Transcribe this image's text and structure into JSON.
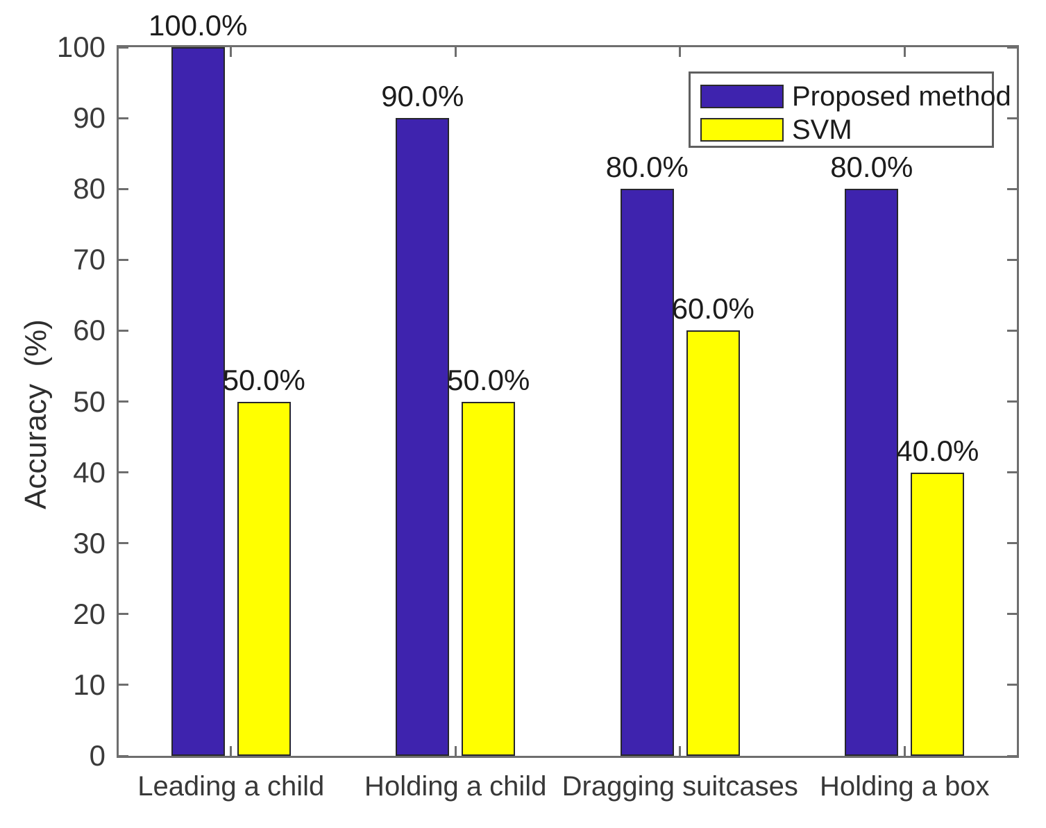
{
  "chart_data": {
    "type": "bar",
    "title": "",
    "xlabel": "",
    "ylabel": "Accuracy  (%)",
    "ylim": [
      0,
      100
    ],
    "yticks": [
      0,
      10,
      20,
      30,
      40,
      50,
      60,
      70,
      80,
      90,
      100
    ],
    "ytick_labels": [
      "0",
      "10",
      "20",
      "30",
      "40",
      "50",
      "60",
      "70",
      "80",
      "90",
      "100"
    ],
    "categories": [
      "Leading a child",
      "Holding a child",
      "Dragging suitcases",
      "Holding a box"
    ],
    "series": [
      {
        "name": "Proposed method",
        "color": "#3E23AE",
        "values": [
          100,
          90,
          80,
          80
        ],
        "value_labels": [
          "100.0%",
          "90.0%",
          "80.0%",
          "80.0%"
        ]
      },
      {
        "name": "SVM",
        "color": "#FFFF00",
        "values": [
          50,
          50,
          60,
          40
        ],
        "value_labels": [
          "50.0%",
          "50.0%",
          "60.0%",
          "40.0%"
        ]
      }
    ],
    "legend_position": "top-right",
    "grid": false,
    "colors": {
      "axis": "#6e6e6e",
      "bar_edge": "#26262b",
      "tick_text": "#3a3a3a",
      "value_text": "#1c1c1c",
      "background": "#ffffff"
    }
  }
}
